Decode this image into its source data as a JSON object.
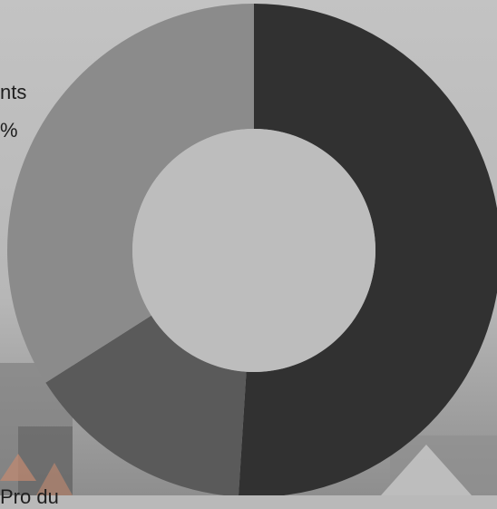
{
  "chart_data": {
    "type": "pie",
    "donut": true,
    "title": "",
    "slices": [
      {
        "value": 51,
        "color": "#313131"
      },
      {
        "value": 15,
        "color": "#5a5a5a"
      },
      {
        "value": 34,
        "color": "#8b8b8b"
      }
    ],
    "labels": [
      {
        "lines": [
          "nts",
          "%"
        ]
      },
      {
        "lines": [
          "Pro du"
        ]
      }
    ]
  }
}
